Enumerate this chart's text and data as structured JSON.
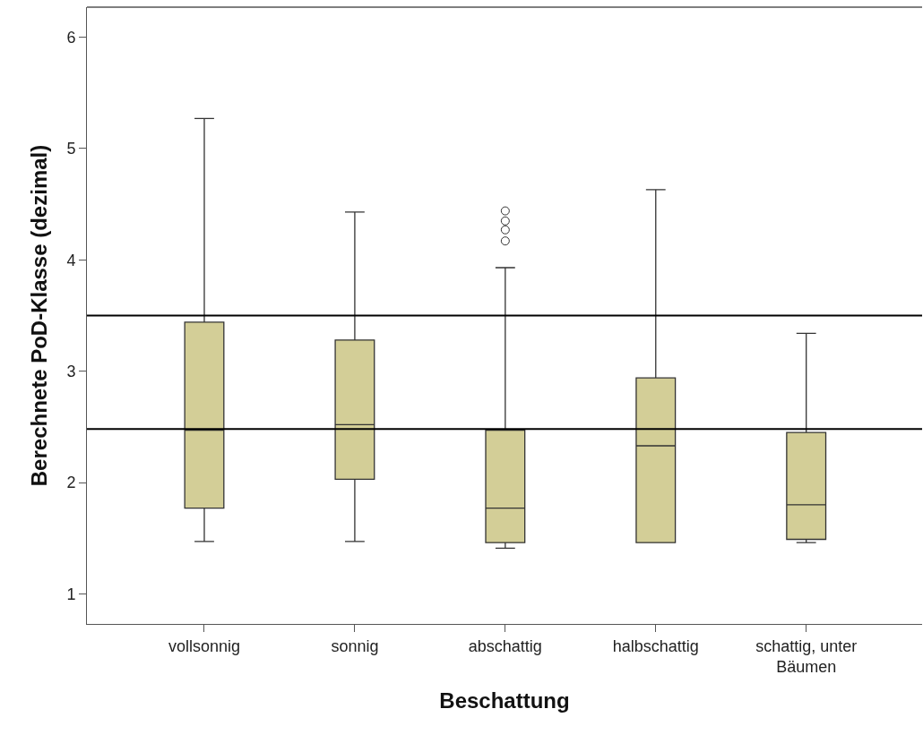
{
  "chart_data": {
    "type": "box",
    "xlabel": "Beschattung",
    "ylabel": "Berechnete PoD-Klasse (dezimal)",
    "categories": [
      "vollsonnig",
      "sonnig",
      "abschattig",
      "halbschattig",
      "schattig, unter Bäumen"
    ],
    "color": "#d3ce97",
    "boxes": [
      {
        "low": 1.47,
        "q1": 1.77,
        "median": 2.47,
        "q3": 3.44,
        "high": 5.27
      },
      {
        "low": 1.47,
        "q1": 2.03,
        "median": 2.52,
        "q3": 3.28,
        "high": 4.43
      },
      {
        "low": 1.41,
        "q1": 1.46,
        "median": 1.77,
        "q3": 2.47,
        "high": 3.93,
        "outliers": [
          4.44,
          4.35,
          4.27,
          4.17
        ]
      },
      {
        "low": 1.46,
        "q1": 1.46,
        "median": 2.33,
        "q3": 2.94,
        "high": 4.63
      },
      {
        "low": 1.46,
        "q1": 1.49,
        "median": 1.8,
        "q3": 2.45,
        "high": 3.34
      }
    ],
    "ylim": [
      0.73,
      6.27
    ],
    "yticks": [
      1,
      2,
      3,
      4,
      5,
      6
    ],
    "ref_lines": [
      {
        "axis": "y",
        "value": 3.5,
        "label": null,
        "color": "#000000"
      },
      {
        "axis": "y",
        "value": 2.48,
        "label": null,
        "color": "#000000"
      }
    ]
  }
}
